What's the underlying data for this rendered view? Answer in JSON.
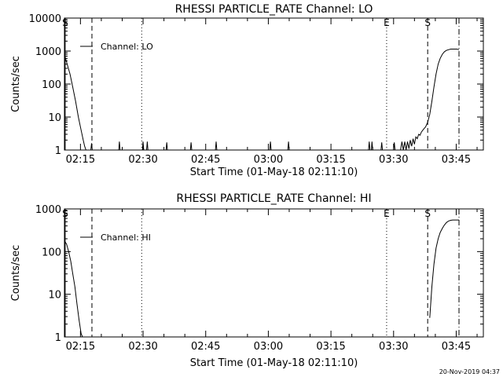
{
  "footer_timestamp": "20-Nov-2019 04:37",
  "chart_data": [
    {
      "type": "line",
      "title": "RHESSI PARTICLE_RATE Channel: LO",
      "xlabel": "Start Time (01-May-18 02:11:10)",
      "ylabel": "Counts/sec",
      "yscale": "log",
      "xlim": [
        "02:11:10",
        "03:51:30"
      ],
      "ylim": [
        1,
        10000
      ],
      "x_tick_labels": [
        "02:15",
        "02:30",
        "02:45",
        "03:00",
        "03:15",
        "03:30",
        "03:45"
      ],
      "y_tick_labels": [
        "1",
        "10",
        "100",
        "1000",
        "10000"
      ],
      "legend": {
        "entries": [
          "Channel: LO"
        ],
        "placement": "top-left"
      },
      "markers": [
        {
          "label": "S",
          "time": "02:11:20",
          "style": "solid"
        },
        {
          "label": "",
          "time": "02:17:45",
          "style": "dashed"
        },
        {
          "label": "",
          "time": "02:29:40",
          "style": "dotted"
        },
        {
          "label": "E",
          "time": "03:28:20",
          "style": "dotted"
        },
        {
          "label": "S",
          "time": "03:38:10",
          "style": "dashed"
        },
        {
          "label": "",
          "time": "03:45:40",
          "style": "dashdot"
        }
      ],
      "series": [
        {
          "name": "Channel: LO",
          "segments": [
            {
              "x": [
                "02:11:10",
                "02:11:50",
                "02:12:30",
                "02:13:10",
                "02:13:50",
                "02:14:30",
                "02:15:10",
                "02:15:40",
                "02:16:00",
                "02:16:20"
              ],
              "y": [
                800,
                400,
                200,
                80,
                30,
                10,
                4,
                2,
                1.3,
                1
              ]
            },
            {
              "x": [
                "02:17:30",
                "02:17:40",
                "02:17:50"
              ],
              "y": [
                1,
                1.6,
                1
              ]
            },
            {
              "x": [
                "02:24:10",
                "02:24:20",
                "02:24:30"
              ],
              "y": [
                1,
                1.8,
                1
              ]
            },
            {
              "x": [
                "02:29:50",
                "02:30:00",
                "02:30:10"
              ],
              "y": [
                1,
                1.8,
                1
              ]
            },
            {
              "x": [
                "02:30:50",
                "02:31:00",
                "02:31:10"
              ],
              "y": [
                1,
                1.8,
                1
              ]
            },
            {
              "x": [
                "02:35:30",
                "02:35:40",
                "02:35:50"
              ],
              "y": [
                1,
                1.7,
                1
              ]
            },
            {
              "x": [
                "02:41:20",
                "02:41:30",
                "02:41:40"
              ],
              "y": [
                1,
                1.7,
                1
              ]
            },
            {
              "x": [
                "02:47:20",
                "02:47:30",
                "02:47:40"
              ],
              "y": [
                1,
                1.8,
                1
              ]
            },
            {
              "x": [
                "03:00:20",
                "03:00:30",
                "03:00:40"
              ],
              "y": [
                1,
                1.8,
                1
              ]
            },
            {
              "x": [
                "03:04:40",
                "03:04:50",
                "03:05:00"
              ],
              "y": [
                1,
                1.8,
                1
              ]
            },
            {
              "x": [
                "03:24:00",
                "03:24:10",
                "03:24:20"
              ],
              "y": [
                1,
                1.8,
                1
              ]
            },
            {
              "x": [
                "03:24:40",
                "03:24:50",
                "03:25:00"
              ],
              "y": [
                1,
                1.8,
                1
              ]
            },
            {
              "x": [
                "03:27:00",
                "03:27:10",
                "03:27:20"
              ],
              "y": [
                1,
                1.7,
                1
              ]
            },
            {
              "x": [
                "03:30:00",
                "03:30:10",
                "03:30:20"
              ],
              "y": [
                1,
                1.7,
                1
              ]
            },
            {
              "x": [
                "03:31:40",
                "03:32:00",
                "03:32:20",
                "03:32:40",
                "03:33:00",
                "03:33:20",
                "03:33:40",
                "03:34:00",
                "03:34:20",
                "03:34:40",
                "03:35:00",
                "03:35:20",
                "03:35:40",
                "03:36:00",
                "03:36:20",
                "03:36:40",
                "03:37:00",
                "03:37:20",
                "03:37:40",
                "03:38:10",
                "03:38:40",
                "03:39:10",
                "03:39:40",
                "03:40:10",
                "03:40:40",
                "03:41:10",
                "03:41:40",
                "03:42:10",
                "03:42:40",
                "03:43:10",
                "03:43:40",
                "03:44:10",
                "03:44:40",
                "03:45:10",
                "03:45:40"
              ],
              "y": [
                1,
                1.8,
                1,
                1.8,
                1,
                1.8,
                1.1,
                2,
                1.3,
                2.2,
                1.5,
                2.5,
                2.2,
                3,
                2.8,
                3.5,
                4,
                4.5,
                5,
                7,
                12,
                30,
                80,
                200,
                400,
                600,
                800,
                950,
                1050,
                1100,
                1150,
                1150,
                1150,
                1150,
                1100
              ]
            }
          ]
        }
      ]
    },
    {
      "type": "line",
      "title": "RHESSI PARTICLE_RATE Channel: HI",
      "xlabel": "Start Time (01-May-18 02:11:10)",
      "ylabel": "Counts/sec",
      "yscale": "log",
      "xlim": [
        "02:11:10",
        "03:51:30"
      ],
      "ylim": [
        1,
        1000
      ],
      "x_tick_labels": [
        "02:15",
        "02:30",
        "02:45",
        "03:00",
        "03:15",
        "03:30",
        "03:45"
      ],
      "y_tick_labels": [
        "1",
        "10",
        "100",
        "1000"
      ],
      "legend": {
        "entries": [
          "Channel: HI"
        ],
        "placement": "top-left"
      },
      "markers": [
        {
          "label": "S",
          "time": "02:11:20",
          "style": "solid"
        },
        {
          "label": "",
          "time": "02:17:45",
          "style": "dashed"
        },
        {
          "label": "",
          "time": "02:29:40",
          "style": "dotted"
        },
        {
          "label": "E",
          "time": "03:28:20",
          "style": "dotted"
        },
        {
          "label": "S",
          "time": "03:38:10",
          "style": "dashed"
        },
        {
          "label": "",
          "time": "03:45:40",
          "style": "dashdot"
        }
      ],
      "series": [
        {
          "name": "Channel: HI",
          "segments": [
            {
              "x": [
                "02:11:10",
                "02:11:40",
                "02:12:10",
                "02:12:40",
                "02:13:10",
                "02:13:40",
                "02:14:10",
                "02:14:40",
                "02:15:10",
                "02:15:30"
              ],
              "y": [
                180,
                150,
                100,
                60,
                30,
                15,
                6,
                2.5,
                1.2,
                1
              ]
            },
            {
              "x": [
                "03:38:40",
                "03:39:10",
                "03:39:40",
                "03:40:10",
                "03:40:40",
                "03:41:10",
                "03:41:40",
                "03:42:10",
                "03:42:40",
                "03:43:10",
                "03:43:40",
                "03:44:10",
                "03:44:40",
                "03:45:10",
                "03:45:40"
              ],
              "y": [
                2.8,
                15,
                50,
                120,
                200,
                280,
                350,
                420,
                480,
                520,
                540,
                550,
                550,
                550,
                550
              ]
            }
          ]
        }
      ]
    }
  ]
}
